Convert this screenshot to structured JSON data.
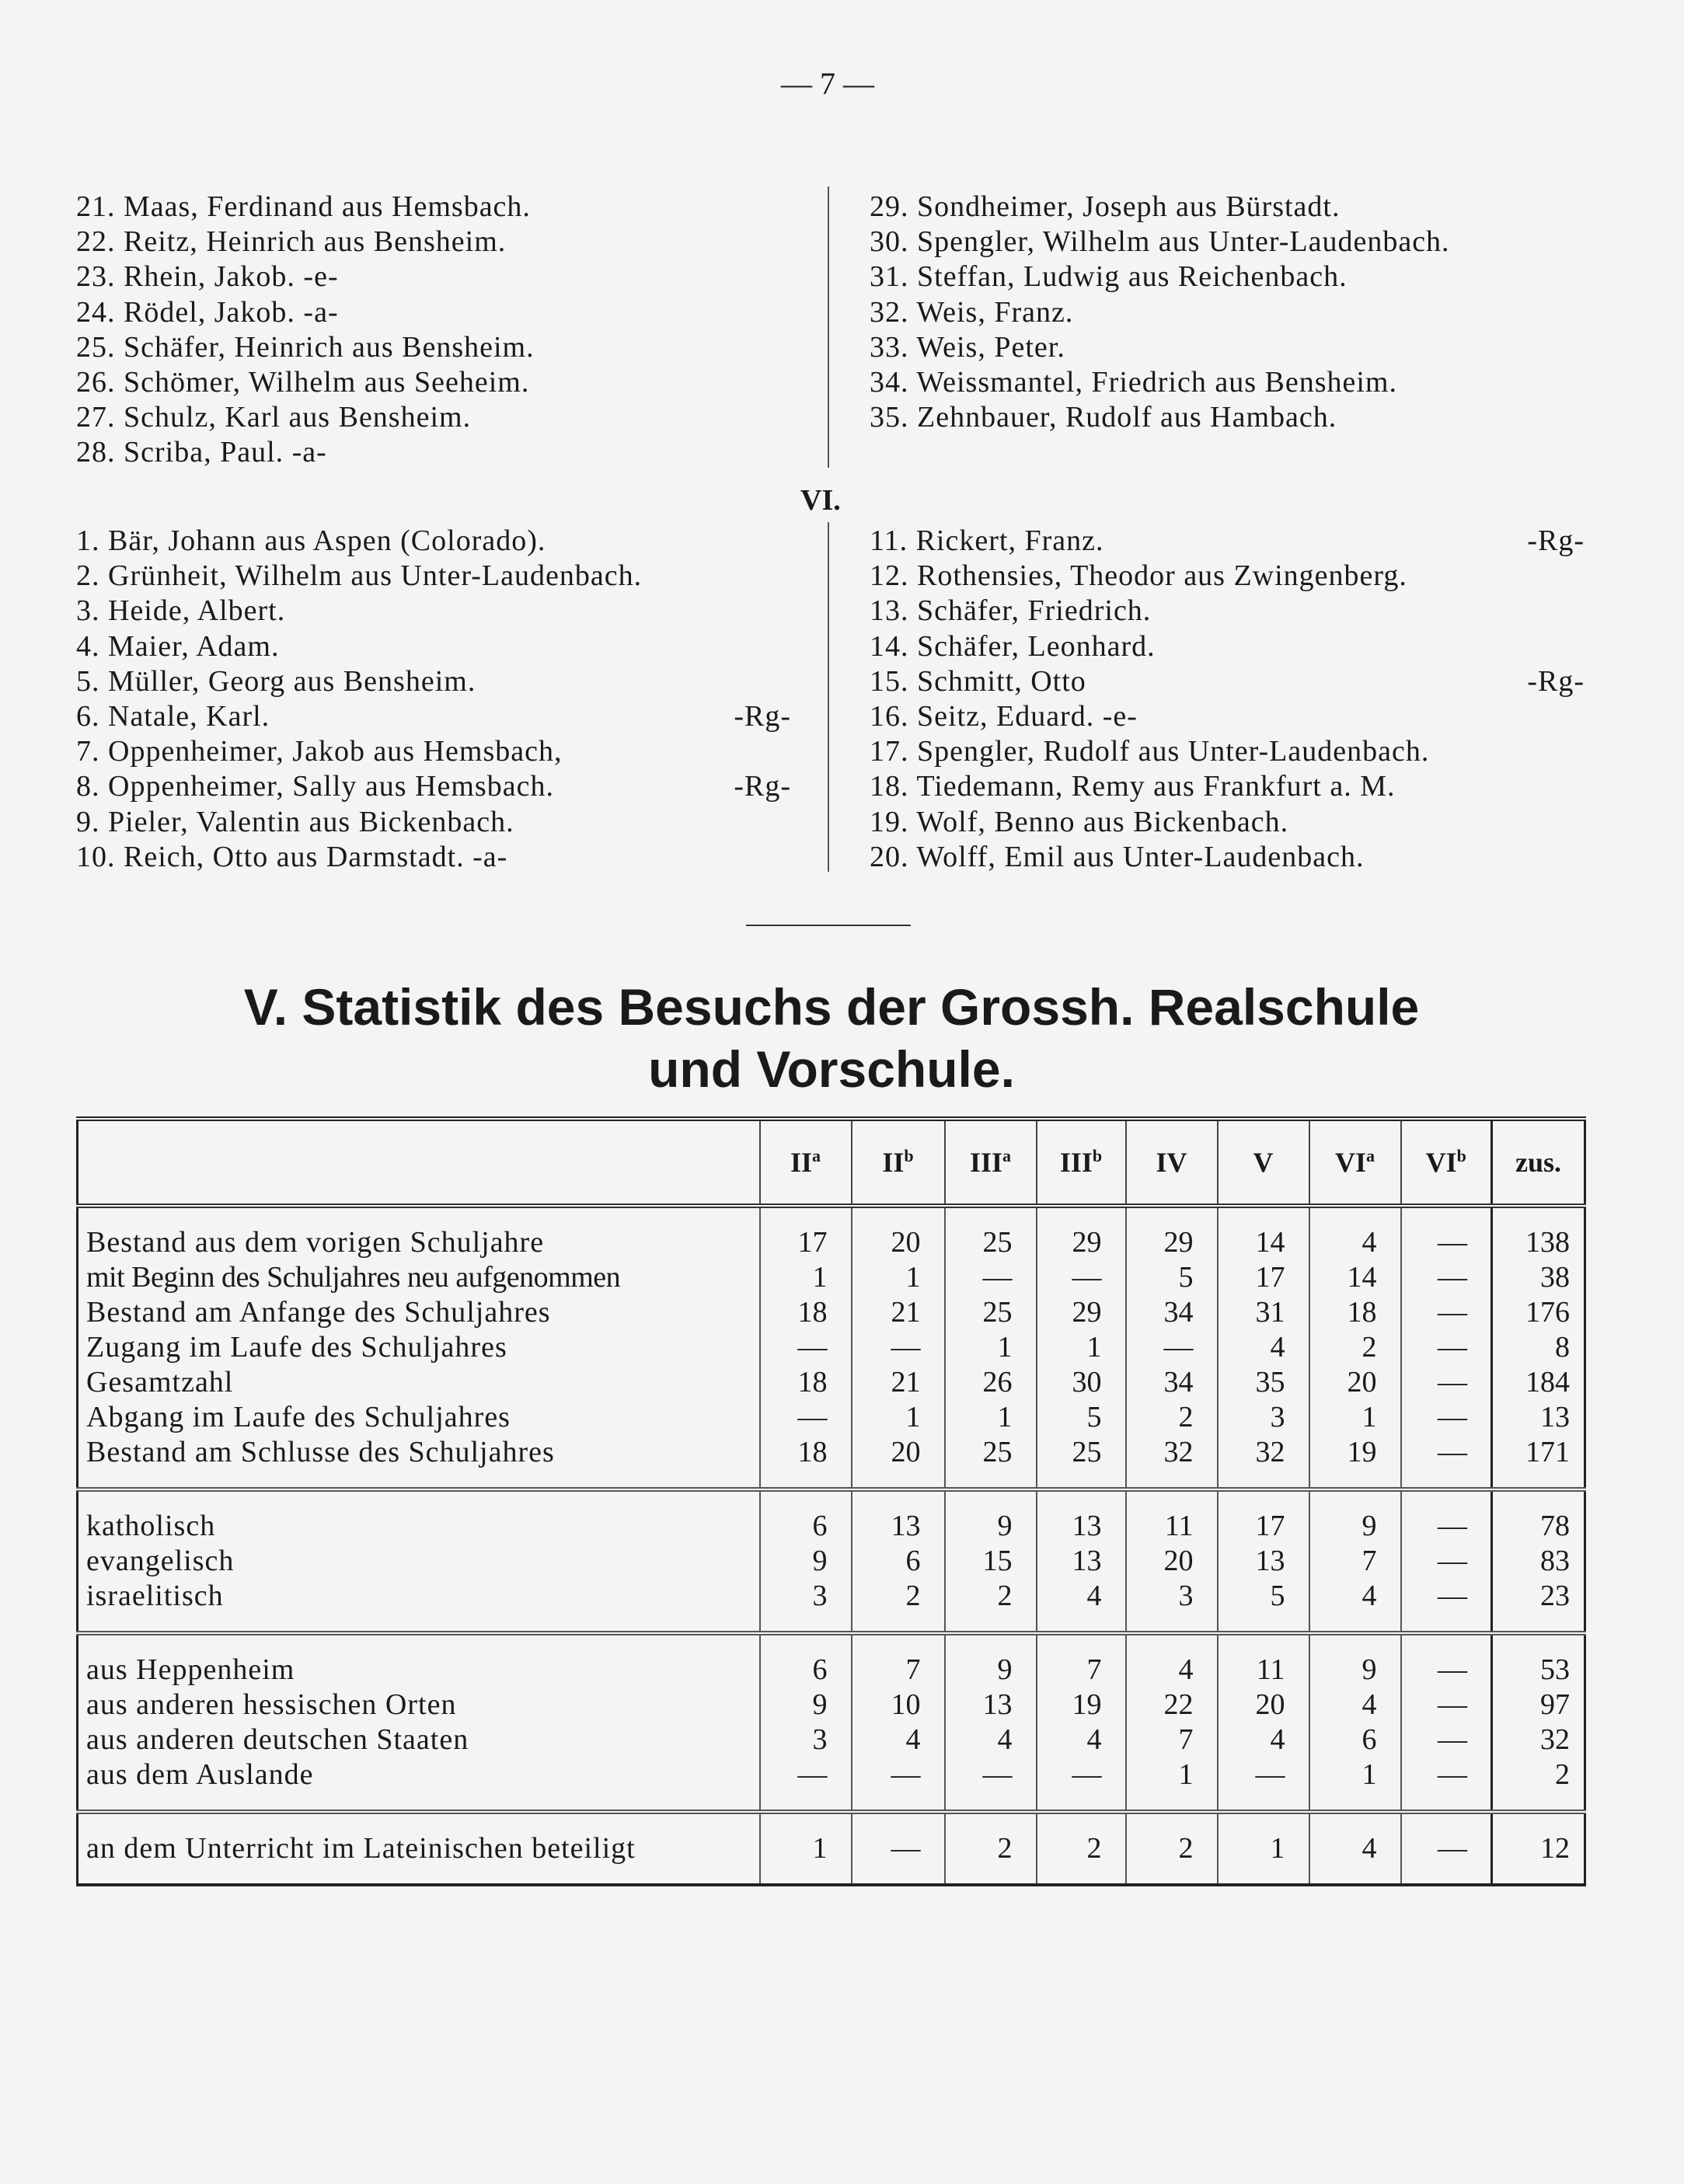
{
  "page_number": "— 7 —",
  "list_top_left": [
    {
      "text": "21. Maas, Ferdinand aus Hemsbach."
    },
    {
      "text": "22. Reitz, Heinrich aus Bensheim."
    },
    {
      "text": "23. Rhein, Jakob. -e-"
    },
    {
      "text": "24. Rödel, Jakob. -a-"
    },
    {
      "text": "25. Schäfer, Heinrich aus Bensheim."
    },
    {
      "text": "26. Schömer, Wilhelm aus Seeheim."
    },
    {
      "text": "27. Schulz, Karl aus Bensheim."
    },
    {
      "text": "28. Scriba, Paul. -a-"
    }
  ],
  "list_top_right": [
    {
      "text": "29. Sondheimer, Joseph aus Bürstadt."
    },
    {
      "text": "30. Spengler, Wilhelm aus Unter-Laudenbach."
    },
    {
      "text": "31. Steffan, Ludwig aus Reichenbach."
    },
    {
      "text": "32. Weis, Franz."
    },
    {
      "text": "33. Weis, Peter."
    },
    {
      "text": "34. Weissmantel, Friedrich aus Bensheim."
    },
    {
      "text": "35. Zehnbauer, Rudolf aus Hambach."
    }
  ],
  "section_vi": "VI.",
  "list_vi_left": [
    {
      "text": "1. Bär, Johann aus Aspen (Colorado).",
      "tag": ""
    },
    {
      "text": "2. Grünheit, Wilhelm aus Unter-Laudenbach.",
      "tag": ""
    },
    {
      "text": "3. Heide, Albert.",
      "tag": ""
    },
    {
      "text": "4. Maier, Adam.",
      "tag": ""
    },
    {
      "text": "5. Müller, Georg aus Bensheim.",
      "tag": ""
    },
    {
      "text": "6. Natale, Karl.",
      "tag": "-Rg-"
    },
    {
      "text": "7. Oppenheimer, Jakob aus Hemsbach,",
      "tag": ""
    },
    {
      "text": "8. Oppenheimer, Sally aus Hemsbach.",
      "tag": "-Rg-"
    },
    {
      "text": "9. Pieler, Valentin aus Bickenbach.",
      "tag": ""
    },
    {
      "text": "10. Reich, Otto aus Darmstadt. -a-",
      "tag": ""
    }
  ],
  "list_vi_right": [
    {
      "text": "11. Rickert, Franz.",
      "tag": "-Rg-"
    },
    {
      "text": "12. Rothensies, Theodor aus Zwingenberg.",
      "tag": ""
    },
    {
      "text": "13. Schäfer, Friedrich.",
      "tag": ""
    },
    {
      "text": "14. Schäfer, Leonhard.",
      "tag": ""
    },
    {
      "text": "15. Schmitt, Otto",
      "tag": "-Rg-"
    },
    {
      "text": "16. Seitz, Eduard. -e-",
      "tag": ""
    },
    {
      "text": "17. Spengler, Rudolf aus Unter-Laudenbach.",
      "tag": ""
    },
    {
      "text": "18. Tiedemann, Remy aus Frankfurt a. M.",
      "tag": ""
    },
    {
      "text": "19. Wolf, Benno aus Bickenbach.",
      "tag": ""
    },
    {
      "text": "20. Wolff, Emil aus Unter-Laudenbach.",
      "tag": ""
    }
  ],
  "heading": {
    "line1": "V. Statistik des Besuchs der Grossh. Realschule",
    "line2": "und Vorschule."
  },
  "table": {
    "columns": [
      {
        "base": "II",
        "sup": "a"
      },
      {
        "base": "II",
        "sup": "b"
      },
      {
        "base": "III",
        "sup": "a"
      },
      {
        "base": "III",
        "sup": "b"
      },
      {
        "base": "IV",
        "sup": ""
      },
      {
        "base": "V",
        "sup": ""
      },
      {
        "base": "VI",
        "sup": "a"
      },
      {
        "base": "VI",
        "sup": "b"
      },
      {
        "base": "zus.",
        "sup": ""
      }
    ],
    "sections": [
      [
        {
          "label": "Bestand aus dem vorigen Schuljahre",
          "values": [
            "17",
            "20",
            "25",
            "29",
            "29",
            "14",
            "4",
            "—",
            "138"
          ]
        },
        {
          "label": "mit Beginn des Schuljahres neu aufgenommen",
          "values": [
            "1",
            "1",
            "—",
            "—",
            "5",
            "17",
            "14",
            "—",
            "38"
          ]
        },
        {
          "label": "Bestand am Anfange des Schuljahres",
          "values": [
            "18",
            "21",
            "25",
            "29",
            "34",
            "31",
            "18",
            "—",
            "176"
          ]
        },
        {
          "label": "Zugang im Laufe des Schuljahres",
          "values": [
            "—",
            "—",
            "1",
            "1",
            "—",
            "4",
            "2",
            "—",
            "8"
          ]
        },
        {
          "label": "Gesamtzahl",
          "values": [
            "18",
            "21",
            "26",
            "30",
            "34",
            "35",
            "20",
            "—",
            "184"
          ]
        },
        {
          "label": "Abgang im Laufe des Schuljahres",
          "values": [
            "—",
            "1",
            "1",
            "5",
            "2",
            "3",
            "1",
            "—",
            "13"
          ]
        },
        {
          "label": "Bestand am Schlusse des Schuljahres",
          "values": [
            "18",
            "20",
            "25",
            "25",
            "32",
            "32",
            "19",
            "—",
            "171"
          ]
        }
      ],
      [
        {
          "label": "katholisch",
          "values": [
            "6",
            "13",
            "9",
            "13",
            "11",
            "17",
            "9",
            "—",
            "78"
          ]
        },
        {
          "label": "evangelisch",
          "values": [
            "9",
            "6",
            "15",
            "13",
            "20",
            "13",
            "7",
            "—",
            "83"
          ]
        },
        {
          "label": "israelitisch",
          "values": [
            "3",
            "2",
            "2",
            "4",
            "3",
            "5",
            "4",
            "—",
            "23"
          ]
        }
      ],
      [
        {
          "label": "aus Heppenheim",
          "values": [
            "6",
            "7",
            "9",
            "7",
            "4",
            "11",
            "9",
            "—",
            "53"
          ]
        },
        {
          "label": "aus anderen hessischen Orten",
          "values": [
            "9",
            "10",
            "13",
            "19",
            "22",
            "20",
            "4",
            "—",
            "97"
          ]
        },
        {
          "label": "aus anderen deutschen Staaten",
          "values": [
            "3",
            "4",
            "4",
            "4",
            "7",
            "4",
            "6",
            "—",
            "32"
          ]
        },
        {
          "label": "aus dem Auslande",
          "values": [
            "—",
            "—",
            "—",
            "—",
            "1",
            "—",
            "1",
            "—",
            "2"
          ]
        }
      ],
      [
        {
          "label": "an dem Unterricht im Lateinischen beteiligt",
          "values": [
            "1",
            "—",
            "2",
            "2",
            "2",
            "1",
            "4",
            "—",
            "12"
          ]
        }
      ]
    ]
  }
}
